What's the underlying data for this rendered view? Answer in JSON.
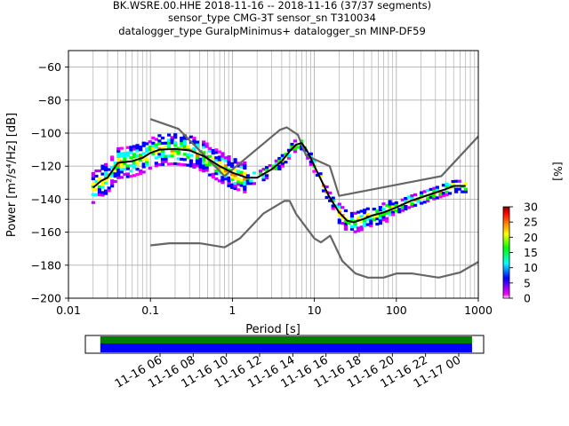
{
  "title_lines": [
    "BK.WSRE.00.HHE   2018-11-16 -- 2018-11-16  (37/37 segments)",
    "sensor_type CMG-3T sensor_sn T310034",
    "datalogger_type GuralpMinimus+ datalogger_sn MINP-DF59"
  ],
  "chart_data": {
    "type": "heatmap",
    "xlabel": "Period [s]",
    "ylabel": "Power [m²/s⁴/Hz] [dB]",
    "xscale": "log",
    "xlim": [
      0.01,
      1000
    ],
    "ylim": [
      -200,
      -50
    ],
    "xticks": [
      0.01,
      0.1,
      1,
      10,
      100,
      1000
    ],
    "xtick_labels": [
      "0.01",
      "0.1",
      "1",
      "10",
      "100",
      "1000"
    ],
    "yticks": [
      -60,
      -80,
      -100,
      -120,
      -140,
      -160,
      -180,
      -200
    ],
    "grid": true,
    "series": [
      {
        "name": "",
        "role": "noise-model-high",
        "color": "#666666",
        "x": [
          0.1,
          0.22,
          0.8,
          3.8,
          4.6,
          6.3,
          7.9,
          15.4,
          20,
          354.8,
          10000
        ],
        "y": [
          -91.5,
          -97.4,
          -126.0,
          -98.0,
          -96.5,
          -101.0,
          -113.5,
          -120.0,
          -138.0,
          -126.0,
          -48.5
        ]
      },
      {
        "name": "",
        "role": "noise-model-low",
        "color": "#666666",
        "x": [
          0.1,
          0.17,
          0.4,
          0.8,
          1.24,
          2.4,
          4.3,
          5.0,
          6.0,
          10.0,
          12.0,
          15.6,
          21.9,
          31.6,
          45.0,
          70.0,
          101.0,
          154.0,
          328.0,
          600.0,
          1000.0
        ],
        "y": [
          -168.0,
          -166.7,
          -166.7,
          -169.2,
          -163.7,
          -148.6,
          -141.1,
          -141.1,
          -149.0,
          -163.8,
          -166.2,
          -162.1,
          -177.5,
          -185.0,
          -187.5,
          -187.5,
          -185.0,
          -185.0,
          -187.5,
          -184.4,
          -178.0
        ]
      },
      {
        "name": "",
        "role": "mean-psd",
        "color": "#000000",
        "x": [
          0.02,
          0.025,
          0.03,
          0.04,
          0.06,
          0.08,
          0.1,
          0.13,
          0.2,
          0.3,
          0.45,
          0.7,
          1.0,
          1.5,
          2.0,
          3.0,
          4.0,
          5.0,
          6.0,
          7.0,
          8.0,
          9.0,
          10.0,
          12.0,
          15.0,
          20.0,
          25.0,
          30.0,
          40.0,
          50.0,
          70.0,
          100.0,
          150.0,
          200.0,
          300.0,
          400.0,
          500.0,
          700.0
        ],
        "y": [
          -133,
          -129,
          -127,
          -118,
          -117,
          -115,
          -112,
          -110,
          -109.5,
          -110.5,
          -114,
          -120,
          -124,
          -127,
          -127,
          -122,
          -117,
          -111,
          -107,
          -106,
          -110,
          -115,
          -120,
          -128,
          -138,
          -148,
          -153,
          -154,
          -152,
          -150,
          -148,
          -145,
          -141,
          -139,
          -136,
          -134,
          -132,
          -132
        ]
      }
    ],
    "heatmap_colorbar": {
      "label": "[%]",
      "range": [
        0,
        30
      ],
      "ticks": [
        0,
        5,
        10,
        15,
        20,
        25,
        30
      ],
      "colors": [
        "#ffffff",
        "#ff00ff",
        "#0000ff",
        "#00ffff",
        "#00ff00",
        "#ffff00",
        "#ff8000",
        "#ff0000",
        "#800000"
      ]
    }
  },
  "time_axis": {
    "tick_labels": [
      "11-16 06",
      "11-16 08",
      "11-16 10",
      "11-16 12",
      "11-16 14",
      "11-16 16",
      "11-16 18",
      "11-16 20",
      "11-16 22",
      "11-17 00"
    ],
    "tick_hours": [
      6,
      8,
      10,
      12,
      14,
      16,
      18,
      20,
      22,
      24
    ],
    "range_hours": [
      1.5,
      25.5
    ],
    "data_coverage_hours": [
      2.4,
      24.8
    ],
    "coverage_colors": [
      "#008000",
      "#0000ff"
    ]
  }
}
